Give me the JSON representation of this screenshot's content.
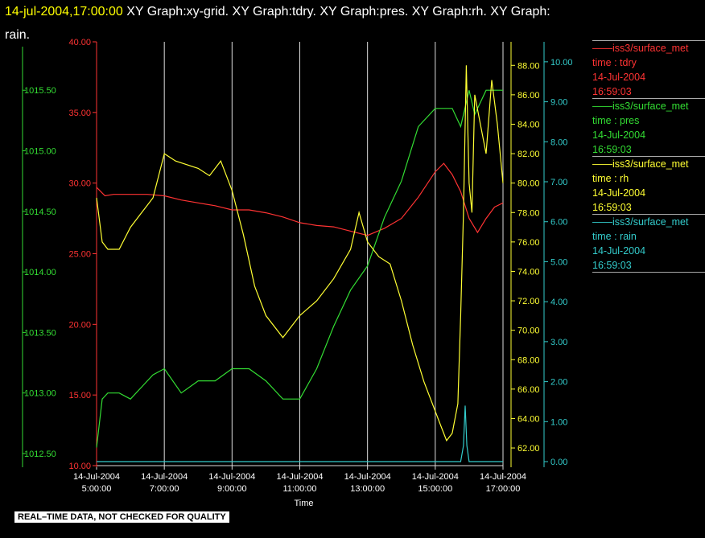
{
  "header": {
    "timestamp": "14-jul-2004,17:00:00",
    "title_line1": " XY Graph:xy-grid.  XY Graph:tdry.  XY Graph:pres.  XY Graph:rh.  XY Graph:",
    "title_line2": "rain."
  },
  "legend": [
    {
      "line1": "iss3/surface_met",
      "line2": "time : tdry",
      "line3": "14-Jul-2004",
      "line4": "16:59:03",
      "color": "#ff3333"
    },
    {
      "line1": "iss3/surface_met",
      "line2": "time : pres",
      "line3": "14-Jul-2004",
      "line4": "16:59:03",
      "color": "#33dd33"
    },
    {
      "line1": "iss3/surface_met",
      "line2": "time : rh",
      "line3": "14-Jul-2004",
      "line4": "16:59:03",
      "color": "#ffff33"
    },
    {
      "line1": "iss3/surface_met",
      "line2": "time : rain",
      "line3": "14-Jul-2004",
      "line4": "16:59:03",
      "color": "#33cccc"
    }
  ],
  "footer": {
    "qc_note": "REAL–TIME DATA, NOT CHECKED FOR QUALITY"
  },
  "chart_data": {
    "type": "line",
    "xlabel": "Time",
    "x_ticks": [
      {
        "date": "14-Jul-2004",
        "time": "5:00:00"
      },
      {
        "date": "14-Jul-2004",
        "time": "7:00:00"
      },
      {
        "date": "14-Jul-2004",
        "time": "9:00:00"
      },
      {
        "date": "14-Jul-2004",
        "time": "11:00:00"
      },
      {
        "date": "14-Jul-2004",
        "time": "13:00:00"
      },
      {
        "date": "14-Jul-2004",
        "time": "15:00:00"
      },
      {
        "date": "14-Jul-2004",
        "time": "17:00:00"
      }
    ],
    "xlim": [
      "05:00",
      "17:00"
    ],
    "grid_x": true,
    "axes": {
      "tdry": {
        "ylim": [
          10,
          40
        ],
        "ticks": [
          "10.00",
          "15.00",
          "20.00",
          "25.00",
          "30.00",
          "35.00",
          "40.00"
        ],
        "color": "#ff3333"
      },
      "pres": {
        "ylim": [
          1012.4,
          1015.9
        ],
        "ticks": [
          "1012.50",
          "1013.00",
          "1013.50",
          "1014.00",
          "1014.50",
          "1015.00",
          "1015.50"
        ],
        "color": "#33dd33"
      },
      "rh": {
        "ylim": [
          60.8,
          89.6
        ],
        "ticks": [
          "62.00",
          "64.00",
          "66.00",
          "68.00",
          "70.00",
          "72.00",
          "74.00",
          "76.00",
          "78.00",
          "80.00",
          "82.00",
          "84.00",
          "86.00",
          "88.00"
        ],
        "color": "#ffff33"
      },
      "rain": {
        "ylim": [
          -0.1,
          10.5
        ],
        "ticks": [
          "0.00",
          "1.00",
          "2.00",
          "3.00",
          "4.00",
          "5.00",
          "6.00",
          "7.00",
          "8.00",
          "9.00",
          "10.00"
        ],
        "color": "#33cccc"
      }
    },
    "series": [
      {
        "name": "tdry",
        "axis": "tdry",
        "color": "#ff3333",
        "x": [
          "05:00",
          "05:15",
          "05:30",
          "06:00",
          "06:30",
          "07:00",
          "07:30",
          "08:00",
          "08:30",
          "09:00",
          "09:30",
          "10:00",
          "10:30",
          "11:00",
          "11:30",
          "12:00",
          "12:30",
          "13:00",
          "13:30",
          "14:00",
          "14:30",
          "15:00",
          "15:15",
          "15:30",
          "15:45",
          "16:00",
          "16:15",
          "16:30",
          "16:45",
          "17:00"
        ],
        "values": [
          29.7,
          29.1,
          29.2,
          29.2,
          29.2,
          29.1,
          28.8,
          28.6,
          28.4,
          28.1,
          28.1,
          27.9,
          27.6,
          27.2,
          27.0,
          26.9,
          26.6,
          26.3,
          26.8,
          27.5,
          29.0,
          30.8,
          31.4,
          30.6,
          29.4,
          27.5,
          26.5,
          27.5,
          28.3,
          28.6
        ]
      },
      {
        "name": "pres",
        "axis": "pres",
        "color": "#33dd33",
        "x": [
          "05:00",
          "05:10",
          "05:20",
          "05:40",
          "06:00",
          "06:20",
          "06:40",
          "07:00",
          "07:30",
          "08:00",
          "08:30",
          "09:00",
          "09:30",
          "10:00",
          "10:30",
          "11:00",
          "11:30",
          "12:00",
          "12:30",
          "13:00",
          "13:30",
          "14:00",
          "14:30",
          "15:00",
          "15:30",
          "15:45",
          "16:00",
          "16:10",
          "16:30",
          "17:00"
        ],
        "values": [
          1012.55,
          1012.95,
          1013.0,
          1013.0,
          1012.95,
          1013.05,
          1013.15,
          1013.2,
          1013.0,
          1013.1,
          1013.1,
          1013.2,
          1013.2,
          1013.1,
          1012.95,
          1012.95,
          1013.2,
          1013.55,
          1013.85,
          1014.05,
          1014.45,
          1014.75,
          1015.2,
          1015.35,
          1015.35,
          1015.2,
          1015.5,
          1015.3,
          1015.5,
          1015.5
        ]
      },
      {
        "name": "rh",
        "axis": "rh",
        "color": "#ffff33",
        "x": [
          "05:00",
          "05:10",
          "05:20",
          "05:40",
          "06:00",
          "06:20",
          "06:40",
          "07:00",
          "07:20",
          "08:00",
          "08:20",
          "08:40",
          "09:00",
          "09:20",
          "09:40",
          "10:00",
          "10:30",
          "11:00",
          "11:30",
          "12:00",
          "12:30",
          "12:45",
          "13:00",
          "13:20",
          "13:40",
          "14:00",
          "14:20",
          "14:40",
          "15:00",
          "15:10",
          "15:20",
          "15:30",
          "15:40",
          "15:45",
          "15:50",
          "15:55",
          "16:00",
          "16:05",
          "16:10",
          "16:20",
          "16:30",
          "16:40",
          "16:50",
          "17:00"
        ],
        "values": [
          79,
          76,
          75.5,
          75.5,
          77,
          78,
          79,
          82,
          81.5,
          81,
          80.5,
          81.5,
          79.5,
          76.5,
          73,
          71,
          69.5,
          71,
          72,
          73.5,
          75.5,
          78,
          76,
          75,
          74.5,
          72,
          69,
          66.5,
          64.5,
          63.5,
          62.5,
          63,
          65,
          71,
          78,
          88,
          80,
          78,
          86,
          84,
          82,
          87,
          84,
          80
        ]
      },
      {
        "name": "rain",
        "axis": "rain",
        "color": "#33cccc",
        "x": [
          "05:00",
          "15:30",
          "15:45",
          "15:50",
          "15:53",
          "15:56",
          "16:00",
          "17:00"
        ],
        "values": [
          0,
          0,
          0,
          0.4,
          1.4,
          0.4,
          0,
          0
        ]
      }
    ]
  }
}
